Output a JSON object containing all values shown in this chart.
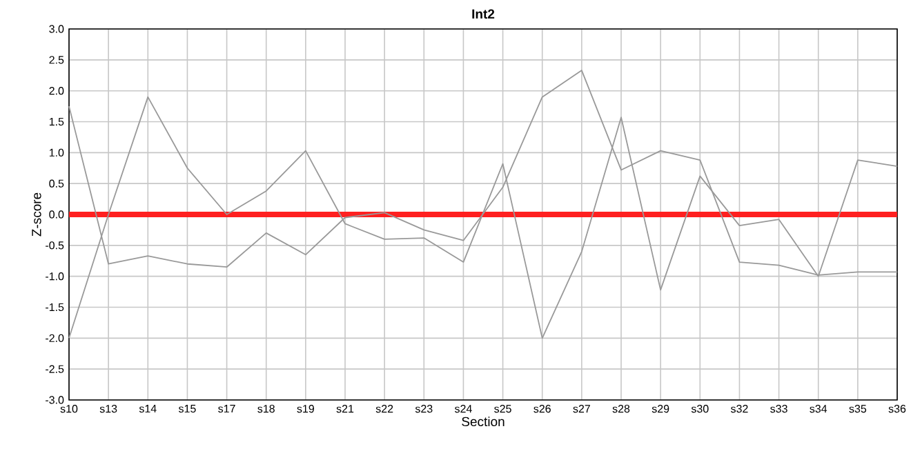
{
  "chart_data": {
    "type": "line",
    "title": "Int2",
    "xlabel": "Section",
    "ylabel": "Z-score",
    "categories": [
      "s10",
      "s13",
      "s14",
      "s15",
      "s17",
      "s18",
      "s19",
      "s21",
      "s22",
      "s23",
      "s24",
      "s25",
      "s26",
      "s27",
      "s28",
      "s29",
      "s30",
      "s32",
      "s33",
      "s34",
      "s35",
      "s36"
    ],
    "series": [
      {
        "color": "#999999",
        "values": [
          1.75,
          -0.8,
          -0.67,
          -0.8,
          -0.85,
          -0.3,
          -0.65,
          -0.05,
          0.03,
          -0.25,
          -0.42,
          0.44,
          1.9,
          2.33,
          0.72,
          1.03,
          0.88,
          -0.77,
          -0.82,
          -0.98,
          -0.93,
          -0.93
        ]
      },
      {
        "color": "#999999",
        "values": [
          -2.0,
          0.0,
          1.9,
          0.75,
          0.0,
          0.38,
          1.03,
          -0.15,
          -0.4,
          -0.38,
          -0.77,
          0.82,
          -2.0,
          -0.6,
          1.57,
          -1.22,
          0.62,
          -0.18,
          -0.08,
          -1.0,
          0.88,
          0.78
        ]
      }
    ],
    "ylim": [
      -3.0,
      3.0
    ],
    "yticks": [
      {
        "value": -3.0,
        "label": "-3.0"
      },
      {
        "value": -2.5,
        "label": "-2.5"
      },
      {
        "value": -2.0,
        "label": "-2.0"
      },
      {
        "value": -1.5,
        "label": "-1.5"
      },
      {
        "value": -1.0,
        "label": "-1.0"
      },
      {
        "value": -0.5,
        "label": "-0.5"
      },
      {
        "value": 0.0,
        "label": "0.0"
      },
      {
        "value": 0.5,
        "label": "0.5"
      },
      {
        "value": 1.0,
        "label": "1.0"
      },
      {
        "value": 1.5,
        "label": "1.5"
      },
      {
        "value": 2.0,
        "label": "2.0"
      },
      {
        "value": 2.5,
        "label": "2.5"
      },
      {
        "value": 3.0,
        "label": "3.0"
      }
    ],
    "ref_lines": [
      {
        "axis": "y",
        "value": 0,
        "color": "#ff2020"
      }
    ],
    "grid": true,
    "legend": false,
    "marker": "none",
    "line_style": "solid"
  }
}
